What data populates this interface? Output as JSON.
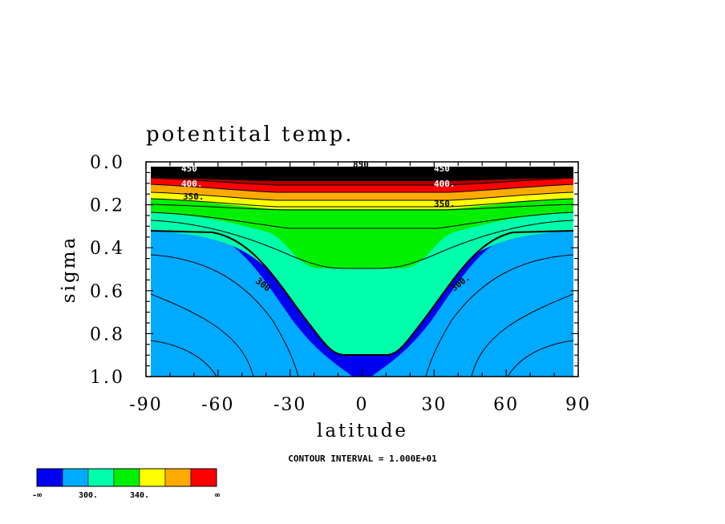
{
  "chart_data": {
    "type": "contour",
    "title": "potentital temp.",
    "xlabel": "latitude",
    "ylabel": "sigma",
    "xlim": [
      -90,
      90
    ],
    "ylim": [
      1.0,
      0.0
    ],
    "xticks": [
      "-90",
      "-60",
      "-30",
      "0",
      "30",
      "60",
      "90"
    ],
    "yticks": [
      "0.0",
      "0.2",
      "0.4",
      "0.6",
      "0.8",
      "1.0"
    ],
    "footnote": "CONTOUR INTERVAL = 1.000E+01",
    "contour_interval": 10,
    "contour_labels": [
      {
        "text": "300",
        "lat": -40,
        "sigma": 0.58
      },
      {
        "text": "300.",
        "lat": 42,
        "sigma": 0.56
      },
      {
        "text": "350.",
        "lat": -74,
        "sigma": 0.16
      },
      {
        "text": "350.",
        "lat": 34,
        "sigma": 0.2
      },
      {
        "text": "400.",
        "lat": -74,
        "sigma": 0.11
      },
      {
        "text": "400.",
        "lat": 34,
        "sigma": 0.11
      },
      {
        "text": "450",
        "lat": -74,
        "sigma": 0.06
      },
      {
        "text": "450",
        "lat": 34,
        "sigma": 0.06
      },
      {
        "text": "850",
        "lat": 0,
        "sigma": 0.02
      }
    ],
    "legend": {
      "colors": [
        "#0000f0",
        "#00aaff",
        "#00ffaa",
        "#00f000",
        "#ffff00",
        "#ffaa00",
        "#ff0000"
      ],
      "labels": [
        "-∞",
        "300.",
        "340.",
        "∞"
      ]
    }
  }
}
